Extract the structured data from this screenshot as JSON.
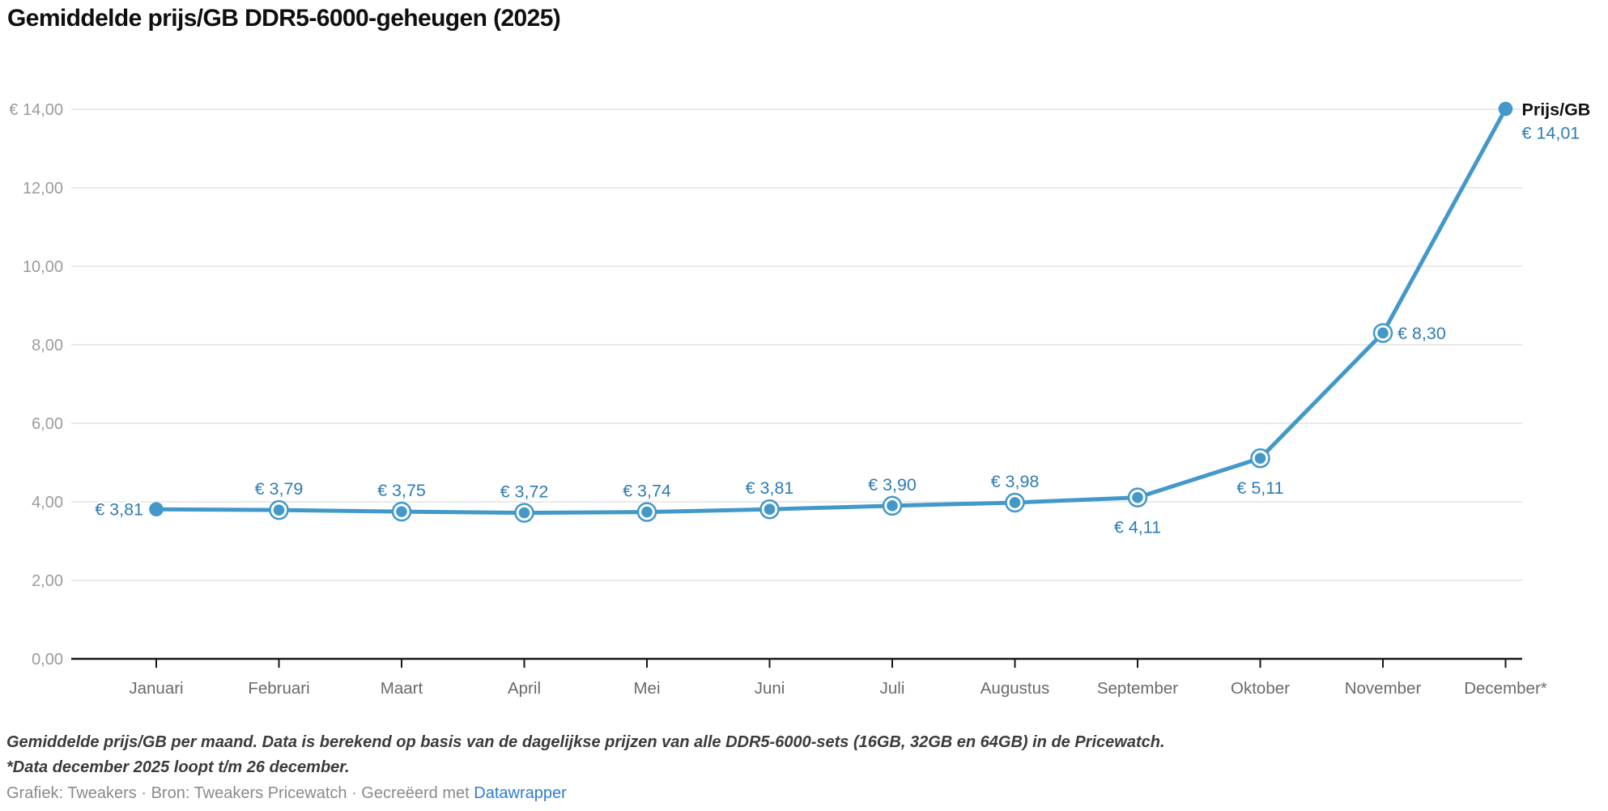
{
  "title": "Gemiddelde prijs/GB DDR5-6000-geheugen (2025)",
  "chart_data": {
    "type": "line",
    "title": "Gemiddelde prijs/GB DDR5-6000-geheugen (2025)",
    "series": [
      {
        "name": "Prijs/GB",
        "values": [
          3.81,
          3.79,
          3.75,
          3.72,
          3.74,
          3.81,
          3.9,
          3.98,
          4.11,
          5.11,
          8.3,
          14.01
        ]
      }
    ],
    "categories": [
      "Januari",
      "Februari",
      "Maart",
      "April",
      "Mei",
      "Juni",
      "Juli",
      "Augustus",
      "September",
      "Oktober",
      "November",
      "December*"
    ],
    "value_labels": [
      "€ 3,81",
      "€ 3,79",
      "€ 3,75",
      "€ 3,72",
      "€ 3,74",
      "€ 3,81",
      "€ 3,90",
      "€ 3,98",
      "€ 4,11",
      "€ 5,11",
      "€ 8,30",
      "€ 14,01"
    ],
    "label_positions": [
      "left",
      "above",
      "above",
      "above",
      "above",
      "above",
      "above",
      "above",
      "below",
      "below",
      "right",
      "legend"
    ],
    "marker_styles": [
      "solid",
      "ring",
      "ring",
      "ring",
      "ring",
      "ring",
      "ring",
      "ring",
      "ring",
      "ring",
      "ring",
      "solid"
    ],
    "xlabel": "",
    "ylabel": "",
    "ylim": [
      0,
      14
    ],
    "y_ticks": [
      0,
      2,
      4,
      6,
      8,
      10,
      12,
      14
    ],
    "y_tick_labels": [
      "0,00",
      "2,00",
      "4,00",
      "6,00",
      "8,00",
      "10,00",
      "12,00",
      "€ 14,00"
    ],
    "grid": true,
    "legend_position": "end-of-line",
    "colors": {
      "line": "#4398ca",
      "value_label": "#2d7db5",
      "grid": "#e4e4e4",
      "axis": "#161616",
      "y_tick_label": "#9b9b9b",
      "x_tick_label": "#6a6a6a",
      "legend_name": "#111111"
    }
  },
  "legend": {
    "series_label": "Prijs/GB",
    "last_value": "€ 14,01"
  },
  "notes": {
    "line1": "Gemiddelde prijs/GB per maand. Data is berekend op basis van de dagelijkse prijzen van alle DDR5-6000-sets (16GB, 32GB en 64GB) in de Pricewatch.",
    "line2": "*Data december 2025 loopt t/m 26 december."
  },
  "credits": {
    "prefix": "Grafiek: Tweakers · Bron: Tweakers Pricewatch · Gecreëerd met ",
    "link": "Datawrapper"
  }
}
